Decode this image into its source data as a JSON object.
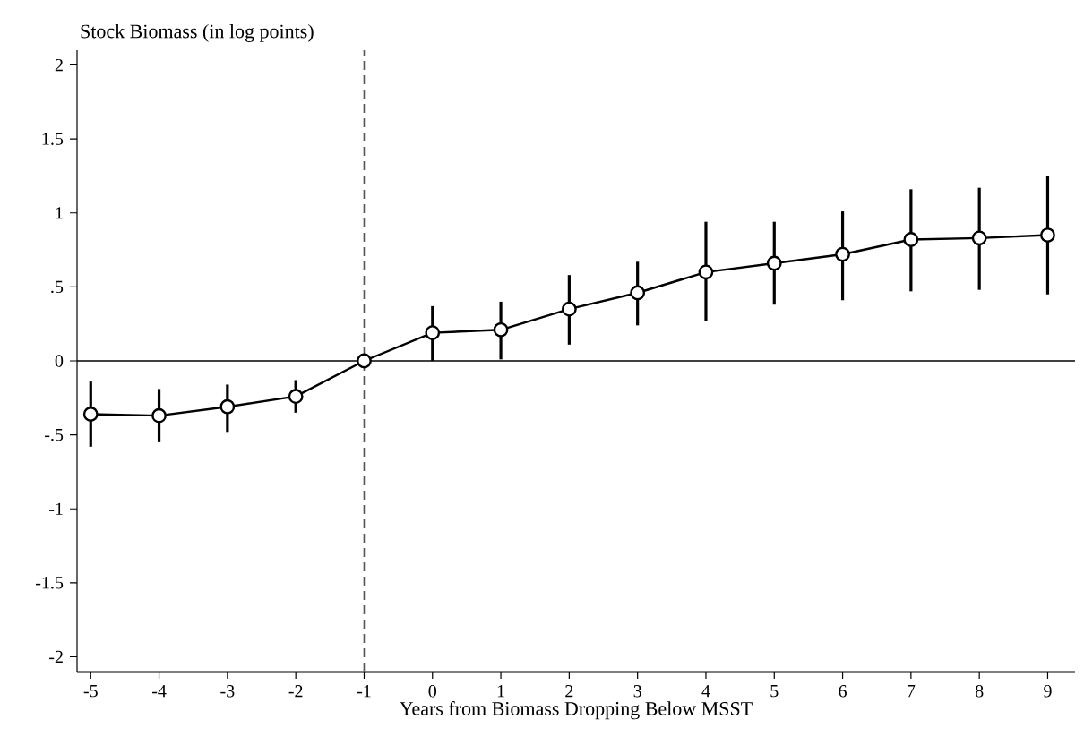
{
  "chart_data": {
    "type": "line",
    "ylabel": "Stock Biomass (in log points)",
    "xlabel": "Years from Biomass Dropping Below MSST",
    "x": [
      -5,
      -4,
      -3,
      -2,
      -1,
      0,
      1,
      2,
      3,
      4,
      5,
      6,
      7,
      8,
      9
    ],
    "series": [
      {
        "color": "#000000",
        "values": [
          -0.36,
          -0.37,
          -0.31,
          -0.24,
          0,
          0.19,
          0.21,
          0.35,
          0.46,
          0.6,
          0.66,
          0.72,
          0.82,
          0.83,
          0.85
        ],
        "errors": [
          [
            -0.58,
            -0.14
          ],
          [
            -0.55,
            -0.19
          ],
          [
            -0.48,
            -0.16
          ],
          [
            -0.35,
            -0.13
          ],
          null,
          [
            0.0,
            0.37
          ],
          [
            0.01,
            0.4
          ],
          [
            0.11,
            0.58
          ],
          [
            0.24,
            0.67
          ],
          [
            0.27,
            0.94
          ],
          [
            0.38,
            0.94
          ],
          [
            0.41,
            1.01
          ],
          [
            0.47,
            1.16
          ],
          [
            0.48,
            1.17
          ],
          [
            0.45,
            1.25
          ]
        ]
      }
    ],
    "xlim": [
      -5.2,
      9.4
    ],
    "ylim": [
      -2.1,
      2.1
    ],
    "xticks": [
      -5,
      -4,
      -3,
      -2,
      -1,
      0,
      1,
      2,
      3,
      4,
      5,
      6,
      7,
      8,
      9
    ],
    "yticks": [
      -2,
      {
        "value": -1.5,
        "label": "-1.5"
      },
      -1,
      {
        "value": -0.5,
        "label": "-.5"
      },
      0,
      {
        "value": 0.5,
        "label": ".5"
      },
      1,
      {
        "value": 1.5,
        "label": "1.5"
      },
      2
    ],
    "ref_lines": [
      {
        "axis": "y",
        "value": 0,
        "color": "#000000",
        "line_style": "solid"
      },
      {
        "axis": "x",
        "value": -1,
        "color": "#555555",
        "line_style": "dashed"
      }
    ],
    "marker": "circle",
    "line_style": "solid",
    "grid": false
  }
}
